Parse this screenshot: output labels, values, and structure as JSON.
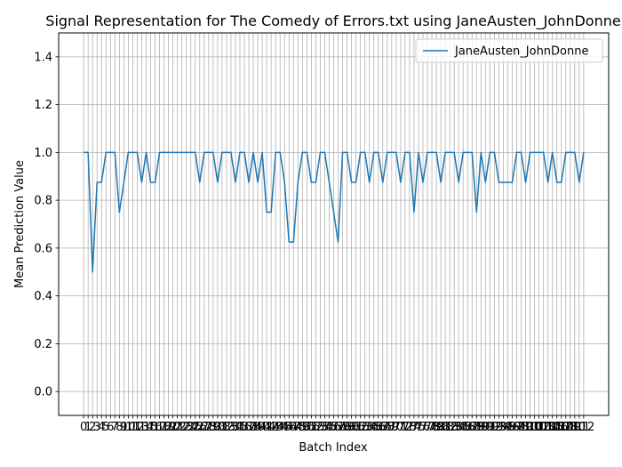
{
  "chart_data": {
    "type": "line",
    "title": "Signal Representation for The Comedy of Errors.txt using JaneAusten_JohnDonne",
    "xlabel": "Batch Index",
    "ylabel": "Mean Prediction Value",
    "ylim": [
      -0.1,
      1.5
    ],
    "xlim": [
      -5.6,
      117.6
    ],
    "grid": true,
    "legend_position": "top-right",
    "line_color": "#1f77b4",
    "y_ticks": [
      "0.0",
      "0.2",
      "0.4",
      "0.6",
      "0.8",
      "1.0",
      "1.2",
      "1.4"
    ],
    "x_tick_labels": [
      "0",
      "1",
      "2",
      "3",
      "4",
      "5",
      "6",
      "7",
      "8",
      "9",
      "10",
      "11",
      "12",
      "13",
      "14",
      "15",
      "16",
      "17",
      "18",
      "19",
      "20",
      "21",
      "22",
      "23",
      "24",
      "25",
      "26",
      "27",
      "28",
      "29",
      "30",
      "31",
      "32",
      "33",
      "34",
      "35",
      "36",
      "37",
      "38",
      "39",
      "40",
      "41",
      "42",
      "43",
      "44",
      "45",
      "46",
      "47",
      "48",
      "49",
      "50",
      "51",
      "52",
      "53",
      "54",
      "55",
      "56",
      "57",
      "58",
      "59",
      "60",
      "61",
      "62",
      "63",
      "64",
      "65",
      "66",
      "67",
      "68",
      "69",
      "70",
      "71",
      "72",
      "73",
      "74",
      "75",
      "76",
      "77",
      "78",
      "79",
      "80",
      "81",
      "82",
      "83",
      "84",
      "85",
      "86",
      "87",
      "88",
      "89",
      "90",
      "91",
      "92",
      "93",
      "94",
      "95",
      "96",
      "97",
      "98",
      "99",
      "100",
      "101",
      "102",
      "103",
      "104",
      "105",
      "106",
      "107",
      "108",
      "109",
      "110",
      "111",
      "112"
    ],
    "series": [
      {
        "name": "JaneAusten_JohnDonne",
        "values": [
          1.0,
          1.0,
          0.5,
          0.875,
          0.875,
          1.0,
          1.0,
          1.0,
          0.75,
          0.875,
          1.0,
          1.0,
          1.0,
          0.875,
          1.0,
          0.875,
          0.875,
          1.0,
          1.0,
          1.0,
          1.0,
          1.0,
          1.0,
          1.0,
          1.0,
          1.0,
          0.875,
          1.0,
          1.0,
          1.0,
          0.875,
          1.0,
          1.0,
          1.0,
          0.875,
          1.0,
          1.0,
          0.875,
          1.0,
          0.875,
          1.0,
          0.75,
          0.75,
          1.0,
          1.0,
          0.875,
          0.625,
          0.625,
          0.875,
          1.0,
          1.0,
          0.875,
          0.875,
          1.0,
          1.0,
          0.875,
          0.75,
          0.625,
          1.0,
          1.0,
          0.875,
          0.875,
          1.0,
          1.0,
          0.875,
          1.0,
          1.0,
          0.875,
          1.0,
          1.0,
          1.0,
          0.875,
          1.0,
          1.0,
          0.75,
          1.0,
          0.875,
          1.0,
          1.0,
          1.0,
          0.875,
          1.0,
          1.0,
          1.0,
          0.875,
          1.0,
          1.0,
          1.0,
          0.75,
          1.0,
          0.875,
          1.0,
          1.0,
          0.875,
          0.875,
          0.875,
          0.875,
          1.0,
          1.0,
          0.875,
          1.0,
          1.0,
          1.0,
          1.0,
          0.875,
          1.0,
          0.875,
          0.875,
          1.0,
          1.0,
          1.0,
          0.875,
          1.0
        ]
      }
    ]
  }
}
